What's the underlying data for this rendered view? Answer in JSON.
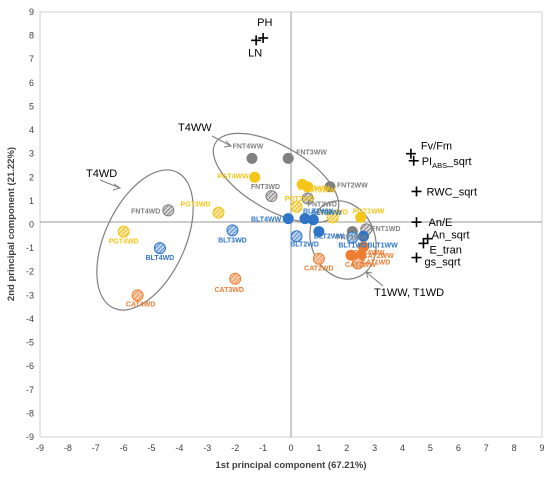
{
  "chart_data": {
    "type": "scatter",
    "xlabel": "1st principal component (67.21%)",
    "ylabel": "2nd principal component (21.22%)",
    "xlim": [
      -9,
      9
    ],
    "ylim": [
      -9,
      9
    ],
    "xticks": [
      "-9",
      "-8",
      "-7",
      "-6",
      "-5",
      "-4",
      "-3",
      "-2",
      "-1",
      "0",
      "1",
      "2",
      "3",
      "4",
      "5",
      "6",
      "7",
      "8",
      "9"
    ],
    "yticks": [
      "-9",
      "-8",
      "-7",
      "-6",
      "-5",
      "-4",
      "-3",
      "-2",
      "-1",
      "0",
      "1",
      "2",
      "3",
      "4",
      "5",
      "6",
      "7",
      "8",
      "9"
    ],
    "grid": false,
    "colors": {
      "FNT": "#808080",
      "PGT": "#F5C518",
      "BLT": "#2E75C8",
      "CAT": "#ED7D31"
    },
    "scores": [
      {
        "label": "FNT4WW",
        "group": "FNT",
        "x": -1.4,
        "y": 2.8,
        "hatched": false
      },
      {
        "label": "FNT3WW",
        "group": "FNT",
        "x": -0.1,
        "y": 2.8,
        "hatched": false
      },
      {
        "label": "FNT3WD",
        "group": "FNT",
        "x": -0.7,
        "y": 1.2,
        "hatched": true
      },
      {
        "label": "FNT2WW",
        "group": "FNT",
        "x": 1.4,
        "y": 1.6,
        "hatched": false
      },
      {
        "label": "FNT2WD",
        "group": "FNT",
        "x": 0.6,
        "y": 1.1,
        "hatched": true
      },
      {
        "label": "FNT4WD",
        "group": "FNT",
        "x": -4.4,
        "y": 0.6,
        "hatched": true
      },
      {
        "label": "FNT1WW",
        "group": "FNT",
        "x": 2.2,
        "y": -0.3,
        "hatched": false
      },
      {
        "label": "FNT1WD",
        "group": "FNT",
        "x": 2.7,
        "y": -0.2,
        "hatched": true
      },
      {
        "label": "PGT4WW",
        "group": "PGT",
        "x": -1.3,
        "y": 2.0,
        "hatched": false
      },
      {
        "label": "PGT3WW",
        "group": "PGT",
        "x": 0.4,
        "y": 1.7,
        "hatched": false
      },
      {
        "label": "PGT3WW",
        "group": "PGT",
        "x": 0.6,
        "y": 1.6,
        "hatched": false
      },
      {
        "label": "PGT2WD",
        "group": "PGT",
        "x": 0.2,
        "y": 0.75,
        "hatched": true
      },
      {
        "label": "PGT3WD",
        "group": "PGT",
        "x": -2.6,
        "y": 0.5,
        "hatched": true
      },
      {
        "label": "PGT1WW",
        "group": "PGT",
        "x": 2.5,
        "y": 0.3,
        "hatched": false
      },
      {
        "label": "PGT1WD",
        "group": "PGT",
        "x": 1.5,
        "y": 0.3,
        "hatched": true
      },
      {
        "label": "PGT4WD",
        "group": "PGT",
        "x": -6.0,
        "y": -0.3,
        "hatched": true
      },
      {
        "label": "BLT4WW",
        "group": "BLT",
        "x": -0.1,
        "y": 0.25,
        "hatched": false
      },
      {
        "label": "BLT3WW",
        "group": "BLT",
        "x": 0.5,
        "y": 0.25,
        "hatched": false
      },
      {
        "label": "BLT3WW",
        "group": "BLT",
        "x": 0.8,
        "y": 0.2,
        "hatched": false
      },
      {
        "label": "BLT3WD",
        "group": "BLT",
        "x": -2.1,
        "y": -0.25,
        "hatched": true
      },
      {
        "label": "BLT2WD",
        "group": "BLT",
        "x": 0.2,
        "y": -0.5,
        "hatched": true
      },
      {
        "label": "BLT2WW",
        "group": "BLT",
        "x": 1.0,
        "y": -0.3,
        "hatched": false
      },
      {
        "label": "BLT1WW",
        "group": "BLT",
        "x": 2.6,
        "y": -0.5,
        "hatched": false
      },
      {
        "label": "BLT1WD",
        "group": "BLT",
        "x": 2.2,
        "y": -0.55,
        "hatched": true
      },
      {
        "label": "BLT4WD",
        "group": "BLT",
        "x": -4.7,
        "y": -1.0,
        "hatched": true
      },
      {
        "label": "CAT4WW",
        "group": "CAT",
        "x": 2.6,
        "y": -0.95,
        "hatched": false
      },
      {
        "label": "CAT2WW",
        "group": "CAT",
        "x": 2.5,
        "y": -1.3,
        "hatched": false
      },
      {
        "label": "CAT1WW",
        "group": "CAT",
        "x": 2.15,
        "y": -1.3,
        "hatched": false
      },
      {
        "label": "CAT1WD",
        "group": "CAT",
        "x": 2.4,
        "y": -1.65,
        "hatched": true
      },
      {
        "label": "CAT2WD",
        "group": "CAT",
        "x": 1.0,
        "y": -1.45,
        "hatched": true
      },
      {
        "label": "CAT3WD",
        "group": "CAT",
        "x": -2.0,
        "y": -2.3,
        "hatched": true
      },
      {
        "label": "CAT4WD",
        "group": "CAT",
        "x": -5.5,
        "y": -3.0,
        "hatched": true
      }
    ],
    "loadings": [
      {
        "label": "PH",
        "x": -1.0,
        "y": 7.9
      },
      {
        "label": "LN",
        "x": -1.25,
        "y": 7.8
      },
      {
        "label": "Fv/Fm",
        "x": 4.3,
        "y": 3.0
      },
      {
        "label": "PI",
        "label_sub": "ABS",
        "label_suffix": "_sqrt",
        "x": 4.4,
        "y": 2.7
      },
      {
        "label": "RWC_sqrt",
        "x": 4.5,
        "y": 1.4
      },
      {
        "label": "An/E",
        "x": 4.5,
        "y": 0.1
      },
      {
        "label": "An_sqrt",
        "x": 4.9,
        "y": -0.6
      },
      {
        "label": "E_tran",
        "x": 4.75,
        "y": -0.8
      },
      {
        "label": "gs_sqrt",
        "x": 4.5,
        "y": -1.4
      }
    ],
    "annotations": [
      {
        "text": "T4WW"
      },
      {
        "text": "T4WD"
      },
      {
        "text": "T1WW, T1WD"
      }
    ]
  }
}
